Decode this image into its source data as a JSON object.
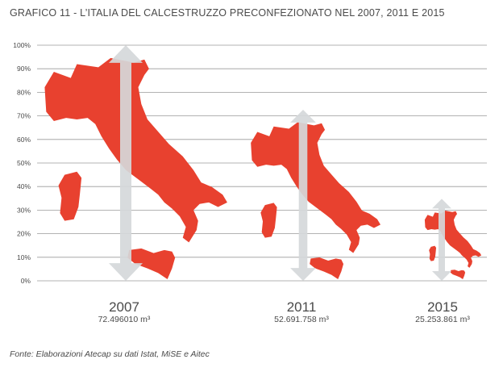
{
  "title": "GRAFICO 11 - L’ITALIA DEL CALCESTRUZZO PRECONFEZIONATO NEL 2007, 2011 E 2015",
  "source": "Fonte: Elaborazioni Atecap su dati Istat, MiSE e Aitec",
  "colors": {
    "map": "#e8412f",
    "arrow": "#d5d8da",
    "grid": "#9a9a9a",
    "text": "#4a4a4a"
  },
  "chart_data": {
    "type": "bar",
    "bar_style": "map-of-italy-pictogram-with-double-arrow",
    "categories": [
      "2007",
      "2011",
      "2015"
    ],
    "values": [
      100,
      72.6,
      34.8
    ],
    "value_labels": [
      "72.496010 m³",
      "52.691.758 m³",
      "25.253.861 m³"
    ],
    "ylim": [
      0,
      100
    ],
    "yticks": [
      0,
      10,
      20,
      30,
      40,
      50,
      60,
      70,
      80,
      90,
      100
    ],
    "ytick_labels": [
      "0%",
      "10%",
      "20%",
      "30%",
      "40%",
      "50%",
      "60%",
      "70%",
      "80%",
      "90%",
      "100%"
    ],
    "grid": true,
    "legend": "none"
  }
}
